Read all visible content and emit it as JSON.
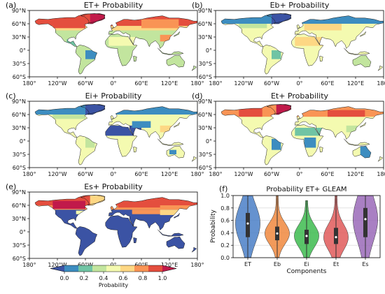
{
  "figure": {
    "panels": [
      {
        "label": "(a)",
        "title": "ET+ Probability",
        "scheme": "a"
      },
      {
        "label": "(b)",
        "title": "Eb+ Probability",
        "scheme": "b"
      },
      {
        "label": "(c)",
        "title": "Ei+ Probability",
        "scheme": "c"
      },
      {
        "label": "(d)",
        "title": "Et+ Probability",
        "scheme": "d"
      },
      {
        "label": "(e)",
        "title": "Es+ Probability",
        "scheme": "e"
      }
    ],
    "lat_ticks": [
      "90°N",
      "60°N",
      "30°N",
      "0°",
      "30°S",
      "60°S"
    ],
    "lon_ticks": [
      "180°",
      "120°W",
      "60°W",
      "0°",
      "60°E",
      "120°E",
      "180°"
    ]
  },
  "colorbar": {
    "label": "Probability",
    "ticks": [
      "0.0",
      "0.2",
      "0.4",
      "0.6",
      "0.8",
      "1.0"
    ],
    "colors": [
      "#3b53a4",
      "#3d8dc0",
      "#70c4a4",
      "#c2e59e",
      "#f4fab0",
      "#fdd784",
      "#f99455",
      "#e44e3e",
      "#c11a4a"
    ]
  },
  "chart_data": {
    "type": "violin",
    "label": "(f)",
    "title": "Probability ET+ GLEAM",
    "xlabel": "Components",
    "ylabel": "Probability",
    "ylim": [
      0,
      1
    ],
    "yticks": [
      "0.0",
      "0.2",
      "0.4",
      "0.6",
      "0.8",
      "1.0"
    ],
    "grid": true,
    "categories": [
      "ET",
      "Eb",
      "Ei",
      "Et",
      "Es"
    ],
    "colors": [
      "#4a7fc7",
      "#f0883e",
      "#3dbb4f",
      "#e05a5a",
      "#9a6ab8"
    ],
    "series": [
      {
        "category": "ET",
        "min": 0.0,
        "q1": 0.33,
        "median": 0.55,
        "q3": 0.72,
        "max": 1.0
      },
      {
        "category": "Eb",
        "min": 0.0,
        "q1": 0.28,
        "median": 0.39,
        "q3": 0.5,
        "max": 1.0
      },
      {
        "category": "Ei",
        "min": 0.0,
        "q1": 0.22,
        "median": 0.35,
        "q3": 0.45,
        "max": 0.92
      },
      {
        "category": "Et",
        "min": 0.0,
        "q1": 0.22,
        "median": 0.33,
        "q3": 0.48,
        "max": 1.0
      },
      {
        "category": "Es",
        "min": 0.0,
        "q1": 0.33,
        "median": 0.62,
        "q3": 0.8,
        "max": 1.0
      }
    ]
  }
}
